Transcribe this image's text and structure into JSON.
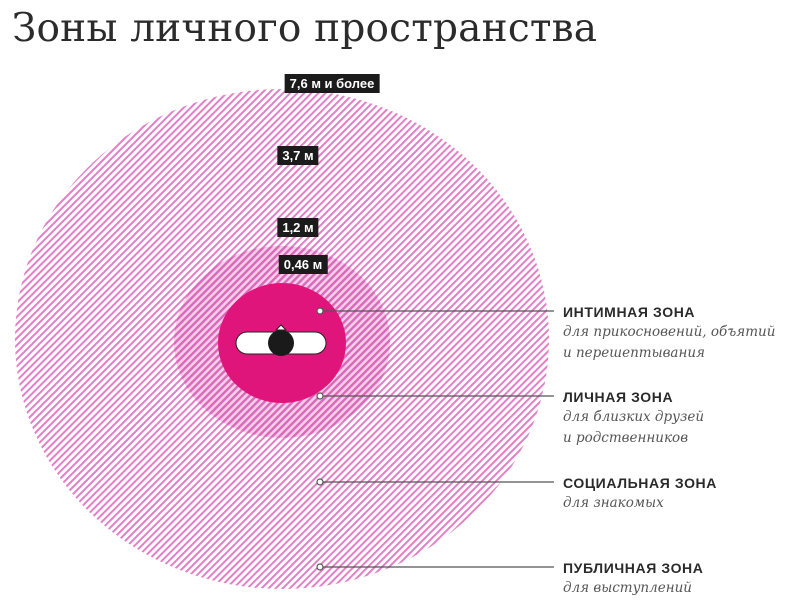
{
  "title": "Зоны личного пространства",
  "colors": {
    "hatch_outer": "#e27fc6",
    "hatch_inner": "#d968bb",
    "intimate": "#e0157c",
    "label_bg": "#1b1b1b",
    "leader": "#555555"
  },
  "radius_labels": {
    "public": "7,6 м и более",
    "social": "3,7 м",
    "personal": "1,2 м",
    "intimate": "0,46 м"
  },
  "zones": [
    {
      "name": "ИНТИМНАЯ ЗОНА",
      "desc": [
        "для прикосновений, объятий",
        "и перешептывания"
      ]
    },
    {
      "name": "ЛИЧНАЯ ЗОНА",
      "desc": [
        "для близких друзей",
        "и родственников"
      ]
    },
    {
      "name": "СОЦИАЛЬНАЯ ЗОНА",
      "desc": [
        "для знакомых"
      ]
    },
    {
      "name": "ПУБЛИЧНАЯ ЗОНА",
      "desc": [
        "для выступлений"
      ]
    }
  ],
  "center_icon": "person-top-view-icon"
}
